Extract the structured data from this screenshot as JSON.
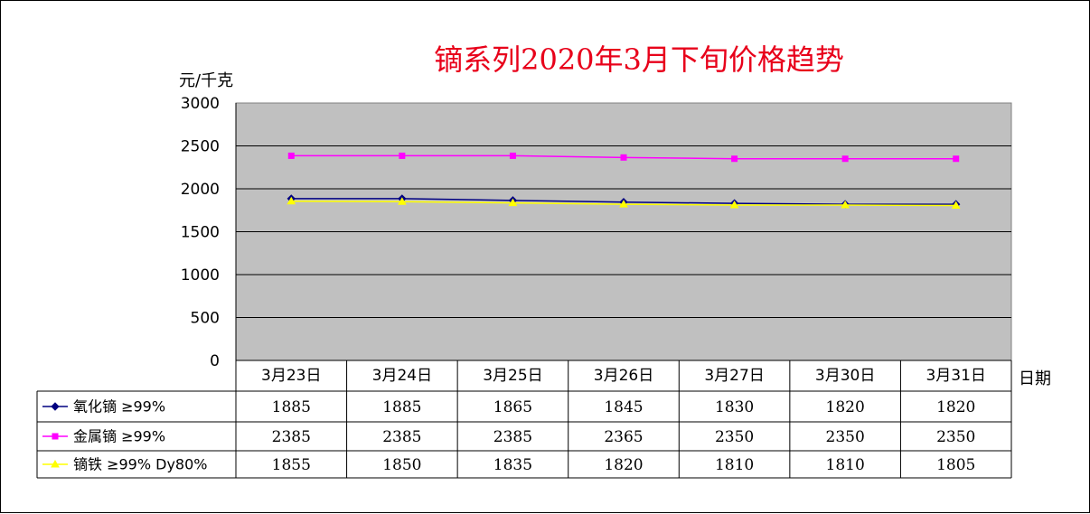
{
  "chart_data": {
    "type": "line",
    "title": "镝系列2020年3月下旬价格趋势",
    "ylabel": "元/千克",
    "xlabel": "日期",
    "ylim": [
      0,
      3000
    ],
    "yticks": [
      0,
      500,
      1000,
      1500,
      2000,
      2500,
      3000
    ],
    "grid": true,
    "plot_background": "#c0c0c0",
    "categories": [
      "3月23日",
      "3月24日",
      "3月25日",
      "3月26日",
      "3月27日",
      "3月30日",
      "3月31日"
    ],
    "series": [
      {
        "name": "氧化镝 ≥99%",
        "color": "#000080",
        "marker": "diamond",
        "values": [
          1885,
          1885,
          1865,
          1845,
          1830,
          1820,
          1820
        ]
      },
      {
        "name": "金属镝 ≥99%",
        "color": "#ff00ff",
        "marker": "square",
        "values": [
          2385,
          2385,
          2385,
          2365,
          2350,
          2350,
          2350
        ]
      },
      {
        "name": "镝铁 ≥99% Dy80%",
        "color": "#ffff00",
        "marker": "triangle",
        "values": [
          1855,
          1850,
          1835,
          1820,
          1810,
          1810,
          1805
        ]
      }
    ],
    "legend_placement": "data-table-left"
  }
}
